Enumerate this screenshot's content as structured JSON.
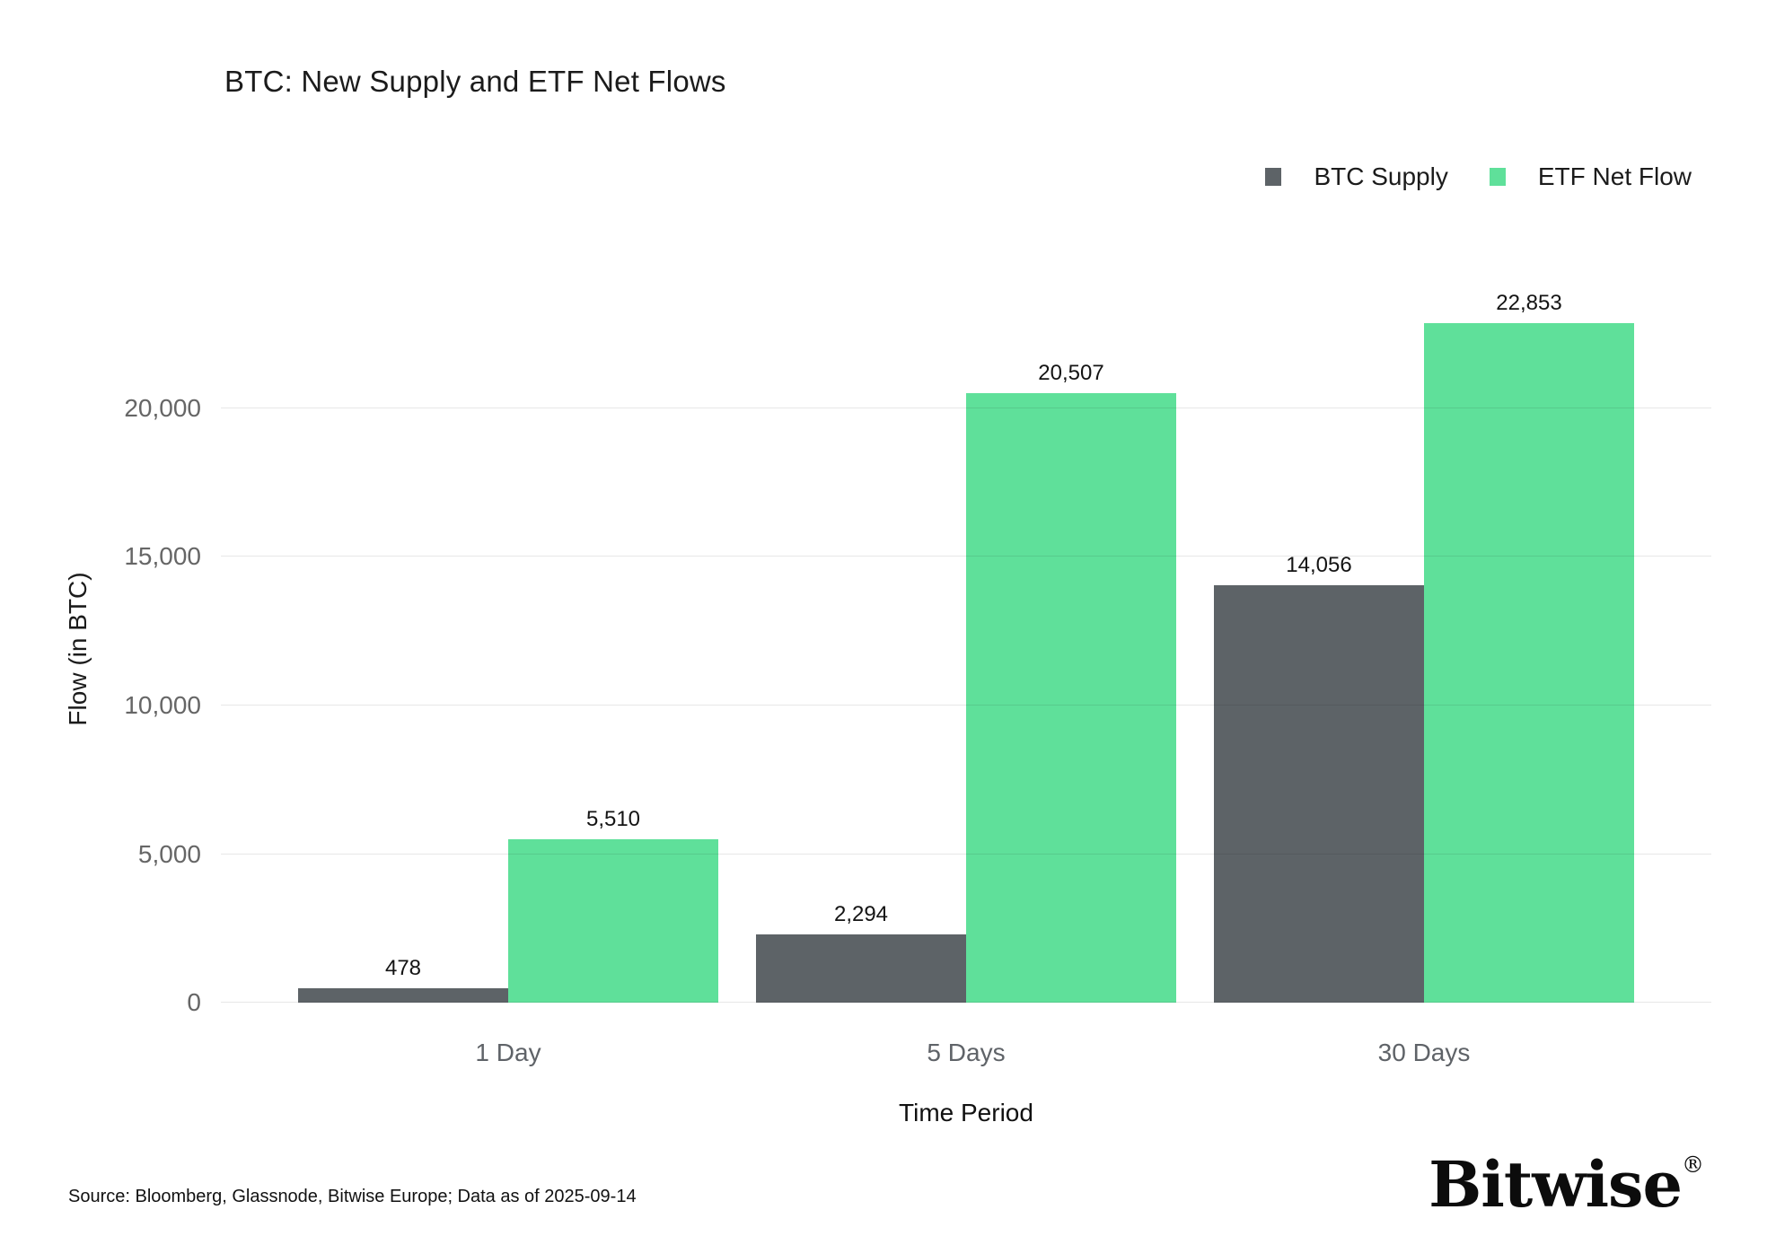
{
  "chart_data": {
    "type": "bar",
    "title": "BTC: New Supply and ETF Net Flows",
    "categories": [
      "1 Day",
      "5 Days",
      "30 Days"
    ],
    "series": [
      {
        "name": "BTC Supply",
        "color": "#5d6367",
        "values": [
          478,
          2294,
          14056
        ]
      },
      {
        "name": "ETF Net Flow",
        "color": "#5fe09a",
        "values": [
          5510,
          20507,
          22853
        ]
      }
    ],
    "xlabel": "Time Period",
    "ylabel": "Flow (in BTC)",
    "ylim": [
      0,
      23500
    ],
    "yticks": [
      0,
      5000,
      10000,
      15000,
      20000
    ],
    "grid": true,
    "legend_position": "top-right",
    "bar_value_labels": true
  },
  "footer": {
    "source": "Source: Bloomberg, Glassnode, Bitwise Europe; Data as of 2025-09-14",
    "logo_text": "Bitwise",
    "logo_registered_mark": "®"
  }
}
